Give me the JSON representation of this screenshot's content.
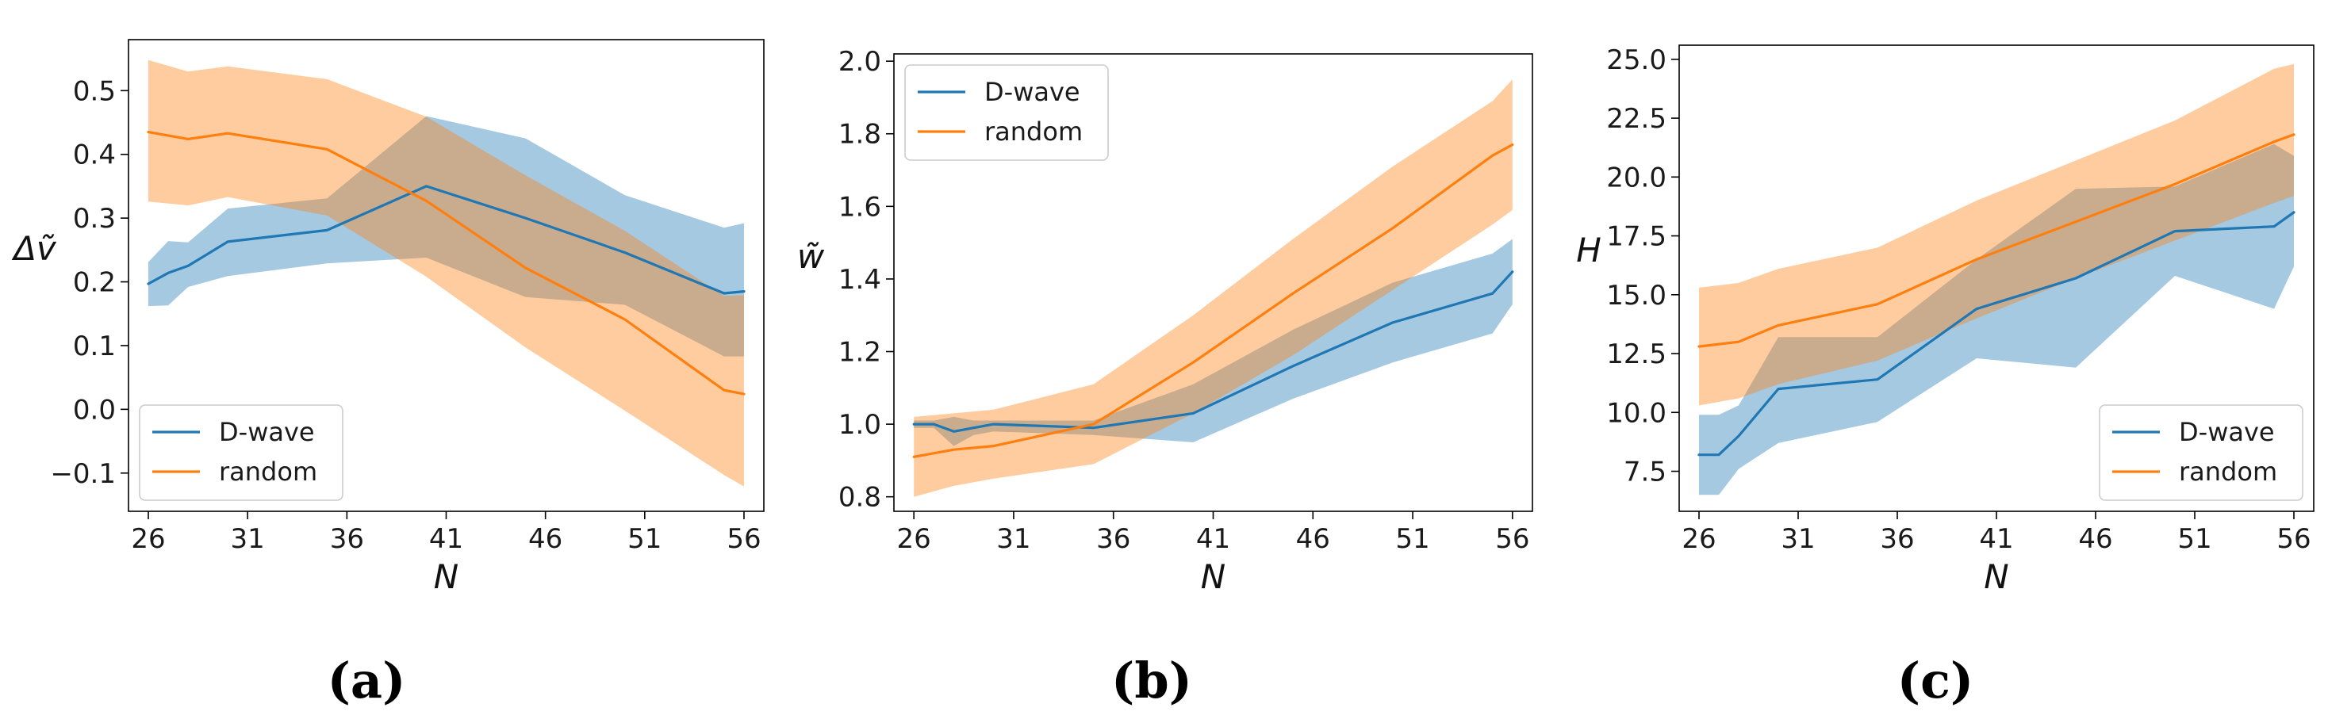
{
  "chart_data": [
    {
      "type": "line",
      "panel_label": "(a)",
      "xlabel": "N",
      "ylabel": "Δṽ",
      "xlim": [
        25,
        57
      ],
      "ylim": [
        -0.16,
        0.58
      ],
      "xticks": [
        26,
        31,
        36,
        41,
        46,
        51,
        56
      ],
      "xtick_labels": [
        "26",
        "31",
        "36",
        "41",
        "46",
        "51",
        "56"
      ],
      "yticks": [
        -0.1,
        0.0,
        0.1,
        0.2,
        0.3,
        0.4,
        0.5
      ],
      "ytick_labels": [
        "−0.1",
        "0.0",
        "0.1",
        "0.2",
        "0.3",
        "0.4",
        "0.5"
      ],
      "legend": "lower-left",
      "series": [
        {
          "name": "D-wave",
          "color": "#1f77b4",
          "x": [
            26,
            27,
            28,
            30,
            35,
            40,
            45,
            50,
            55,
            56
          ],
          "values": [
            0.197,
            0.214,
            0.225,
            0.263,
            0.281,
            0.35,
            0.3,
            0.246,
            0.182,
            0.185
          ],
          "lower": [
            0.162,
            0.163,
            0.192,
            0.209,
            0.229,
            0.238,
            0.176,
            0.164,
            0.083,
            0.083
          ],
          "upper": [
            0.231,
            0.264,
            0.262,
            0.315,
            0.331,
            0.46,
            0.425,
            0.336,
            0.285,
            0.292
          ]
        },
        {
          "name": "random",
          "color": "#ff7f0e",
          "x": [
            26,
            28,
            30,
            35,
            40,
            45,
            50,
            55,
            56
          ],
          "values": [
            0.435,
            0.424,
            0.433,
            0.408,
            0.327,
            0.222,
            0.141,
            0.03,
            0.024
          ],
          "lower": [
            0.326,
            0.32,
            0.333,
            0.304,
            0.208,
            0.097,
            -0.002,
            -0.103,
            -0.121
          ],
          "upper": [
            0.548,
            0.53,
            0.538,
            0.518,
            0.459,
            0.367,
            0.28,
            0.178,
            0.179
          ]
        }
      ]
    },
    {
      "type": "line",
      "panel_label": "(b)",
      "xlabel": "N",
      "ylabel": "w̃",
      "xlim": [
        25,
        57
      ],
      "ylim": [
        0.76,
        2.02
      ],
      "xticks": [
        26,
        31,
        36,
        41,
        46,
        51,
        56
      ],
      "xtick_labels": [
        "26",
        "31",
        "36",
        "41",
        "46",
        "51",
        "56"
      ],
      "yticks": [
        0.8,
        1.0,
        1.2,
        1.4,
        1.6,
        1.8,
        2.0
      ],
      "ytick_labels": [
        "0.8",
        "1.0",
        "1.2",
        "1.4",
        "1.6",
        "1.8",
        "2.0"
      ],
      "legend": "top-left",
      "series": [
        {
          "name": "D-wave",
          "color": "#1f77b4",
          "x": [
            26,
            27,
            28,
            29,
            30,
            35,
            40,
            45,
            50,
            55,
            56
          ],
          "values": [
            1.0,
            1.0,
            0.98,
            0.99,
            1.0,
            0.99,
            1.03,
            1.16,
            1.28,
            1.36,
            1.42
          ],
          "lower": [
            0.99,
            0.99,
            0.94,
            0.97,
            0.98,
            0.97,
            0.95,
            1.07,
            1.17,
            1.25,
            1.33
          ],
          "upper": [
            1.01,
            1.01,
            1.02,
            1.01,
            1.01,
            1.01,
            1.11,
            1.26,
            1.39,
            1.47,
            1.51
          ]
        },
        {
          "name": "random",
          "color": "#ff7f0e",
          "x": [
            26,
            28,
            30,
            35,
            40,
            45,
            50,
            55,
            56
          ],
          "values": [
            0.91,
            0.93,
            0.94,
            1.0,
            1.17,
            1.36,
            1.54,
            1.74,
            1.77
          ],
          "lower": [
            0.8,
            0.83,
            0.85,
            0.89,
            1.03,
            1.19,
            1.37,
            1.55,
            1.59
          ],
          "upper": [
            1.02,
            1.03,
            1.04,
            1.11,
            1.3,
            1.51,
            1.71,
            1.89,
            1.95
          ]
        }
      ]
    },
    {
      "type": "line",
      "panel_label": "(c)",
      "xlabel": "N",
      "ylabel": "H",
      "xlim": [
        25,
        57
      ],
      "ylim": [
        5.8,
        25.6
      ],
      "xticks": [
        26,
        31,
        36,
        41,
        46,
        51,
        56
      ],
      "xtick_labels": [
        "26",
        "31",
        "36",
        "41",
        "46",
        "51",
        "56"
      ],
      "yticks": [
        7.5,
        10.0,
        12.5,
        15.0,
        17.5,
        20.0,
        22.5,
        25.0
      ],
      "ytick_labels": [
        "7.5",
        "10.0",
        "12.5",
        "15.0",
        "17.5",
        "20.0",
        "22.5",
        "25.0"
      ],
      "legend": "lower-right",
      "series": [
        {
          "name": "D-wave",
          "color": "#1f77b4",
          "x": [
            26,
            27,
            28,
            30,
            35,
            40,
            45,
            50,
            55,
            56
          ],
          "values": [
            8.2,
            8.2,
            9.0,
            11.0,
            11.4,
            14.4,
            15.7,
            17.7,
            17.9,
            18.5
          ],
          "lower": [
            6.5,
            6.5,
            7.6,
            8.7,
            9.6,
            12.3,
            11.9,
            15.8,
            14.4,
            16.2
          ],
          "upper": [
            9.9,
            9.9,
            10.3,
            13.2,
            13.2,
            16.5,
            19.5,
            19.6,
            21.4,
            20.9
          ]
        },
        {
          "name": "random",
          "color": "#ff7f0e",
          "x": [
            26,
            28,
            30,
            35,
            40,
            45,
            50,
            55,
            56
          ],
          "values": [
            12.8,
            13.0,
            13.7,
            14.6,
            16.5,
            18.1,
            19.7,
            21.5,
            21.8
          ],
          "lower": [
            10.3,
            10.6,
            11.2,
            12.2,
            14.0,
            15.7,
            17.3,
            18.9,
            19.2
          ],
          "upper": [
            15.3,
            15.5,
            16.1,
            17.0,
            19.0,
            20.7,
            22.4,
            24.6,
            24.8
          ]
        }
      ]
    }
  ]
}
